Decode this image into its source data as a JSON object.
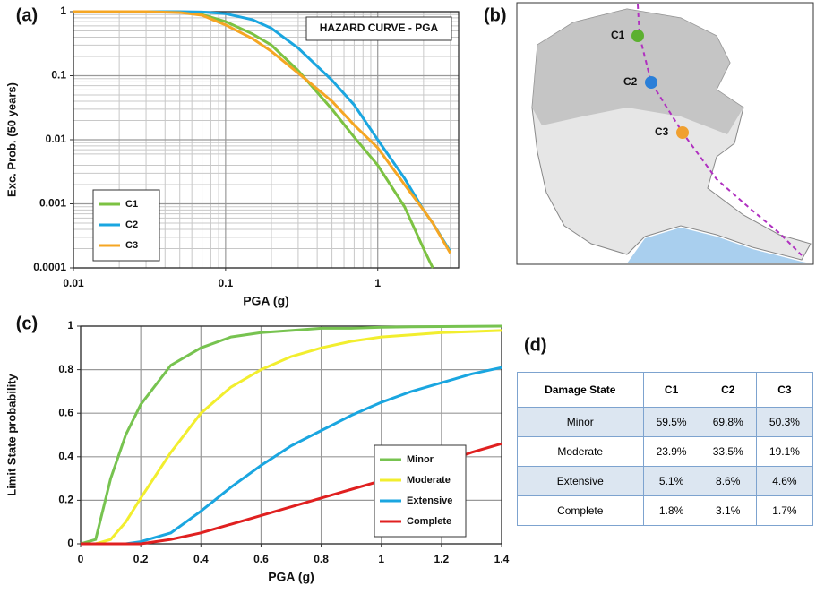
{
  "chart_data": [
    {
      "type": "line",
      "label": "(a)",
      "annotation": "HAZARD CURVE - PGA",
      "x_label": "PGA (g)",
      "y_label": "Exc. Prob. (50 years)",
      "xscale": "log",
      "yscale": "log",
      "grid": true,
      "minor_grid": true,
      "legend": "lower left",
      "xlim": [
        0.01,
        3.4
      ],
      "xticks": [
        0.01,
        0.1,
        1
      ],
      "ylim": [
        0.0001,
        1
      ],
      "yticks": [
        0.0001,
        0.001,
        0.01,
        0.1,
        1
      ],
      "x": [
        0.01,
        0.03,
        0.05,
        0.07,
        0.1,
        0.15,
        0.2,
        0.3,
        0.5,
        0.7,
        1,
        1.5,
        2,
        2.3,
        3
      ],
      "series": [
        {
          "name": "C1",
          "color": "#7cc242",
          "values": [
            1,
            1,
            0.98,
            0.9,
            0.7,
            0.45,
            0.3,
            0.12,
            0.03,
            0.011,
            0.004,
            0.0009,
            0.0002,
            0.0001,
            null
          ]
        },
        {
          "name": "C2",
          "color": "#1aa6e0",
          "values": [
            1,
            1,
            1,
            0.99,
            0.93,
            0.75,
            0.55,
            0.27,
            0.085,
            0.035,
            0.01,
            0.0025,
            0.0008,
            0.0005,
            0.00018
          ]
        },
        {
          "name": "C3",
          "color": "#f5a623",
          "values": [
            1,
            1,
            0.97,
            0.88,
            0.62,
            0.38,
            0.24,
            0.11,
            0.04,
            0.017,
            0.0075,
            0.002,
            0.0008,
            0.0005,
            0.00017
          ]
        }
      ]
    },
    {
      "type": "line",
      "label": "(c)",
      "x_label": "PGA (g)",
      "y_label": "Limit State probability",
      "xscale": "linear",
      "yscale": "linear",
      "grid": true,
      "legend": "lower right",
      "xlim": [
        0,
        1.4
      ],
      "xticks": [
        0,
        0.2,
        0.4,
        0.6,
        0.8,
        1,
        1.2,
        1.4
      ],
      "ylim": [
        0,
        1
      ],
      "yticks": [
        0,
        0.2,
        0.4,
        0.6,
        0.8,
        1
      ],
      "x": [
        0,
        0.05,
        0.1,
        0.15,
        0.2,
        0.3,
        0.4,
        0.5,
        0.6,
        0.7,
        0.8,
        0.9,
        1,
        1.1,
        1.2,
        1.3,
        1.4
      ],
      "series": [
        {
          "name": "Minor",
          "color": "#77c350",
          "values": [
            0,
            0.02,
            0.3,
            0.5,
            0.64,
            0.82,
            0.9,
            0.95,
            0.97,
            0.98,
            0.99,
            0.99,
            0.995,
            0.997,
            0.998,
            0.999,
            1
          ]
        },
        {
          "name": "Moderate",
          "color": "#f2ee2e",
          "values": [
            0,
            0,
            0.02,
            0.1,
            0.21,
            0.42,
            0.6,
            0.72,
            0.8,
            0.86,
            0.9,
            0.93,
            0.95,
            0.96,
            0.97,
            0.975,
            0.98
          ]
        },
        {
          "name": "Extensive",
          "color": "#1aa6e0",
          "values": [
            0,
            0,
            0,
            0,
            0.01,
            0.05,
            0.15,
            0.26,
            0.36,
            0.45,
            0.52,
            0.59,
            0.65,
            0.7,
            0.74,
            0.78,
            0.81
          ]
        },
        {
          "name": "Complete",
          "color": "#e02020",
          "values": [
            0,
            0,
            0,
            0,
            0,
            0.02,
            0.05,
            0.09,
            0.13,
            0.17,
            0.21,
            0.25,
            0.29,
            0.33,
            0.37,
            0.42,
            0.46
          ]
        }
      ]
    }
  ],
  "map": {
    "label": "(b)",
    "sites": [
      {
        "label": "C1",
        "color": "#5cb030"
      },
      {
        "label": "C2",
        "color": "#2a7fd8"
      },
      {
        "label": "C3",
        "color": "#f0a030"
      }
    ]
  },
  "table": {
    "label": "(d)",
    "header": [
      "Damage State",
      "C1",
      "C2",
      "C3"
    ],
    "rows": [
      [
        "Minor",
        "59.5%",
        "69.8%",
        "50.3%"
      ],
      [
        "Moderate",
        "23.9%",
        "33.5%",
        "19.1%"
      ],
      [
        "Extensive",
        "5.1%",
        "8.6%",
        "4.6%"
      ],
      [
        "Complete",
        "1.8%",
        "3.1%",
        "1.7%"
      ]
    ]
  }
}
